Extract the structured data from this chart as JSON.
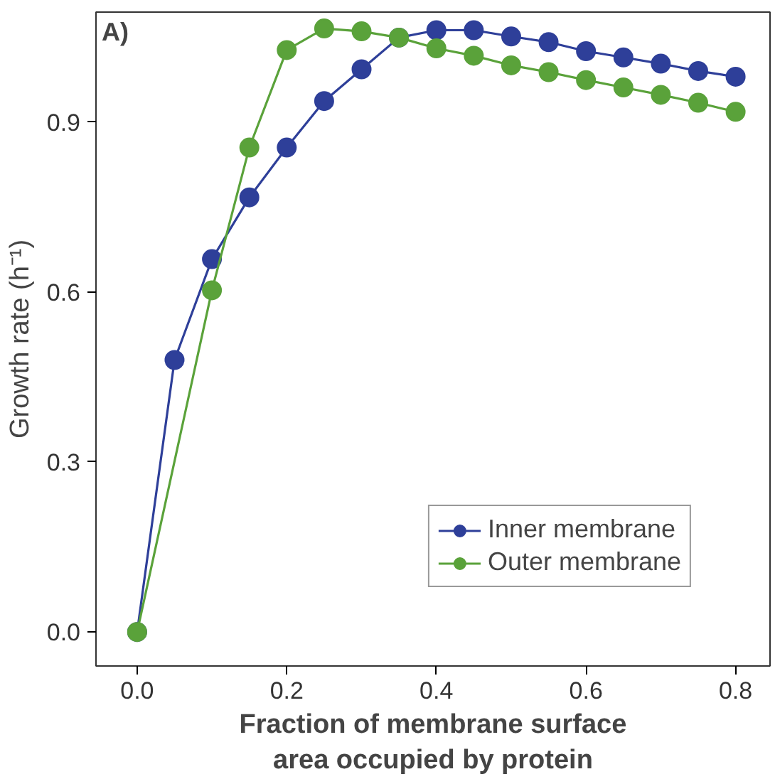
{
  "chart_data": {
    "type": "line",
    "xlabel": "Fraction of membrane surface\narea occupied by protein",
    "ylabel": "Growth rate (h⁻¹)",
    "annotations": [
      "A)"
    ],
    "xlim": [
      -0.055,
      0.846
    ],
    "ylim": [
      -0.06,
      1.094
    ],
    "xticks": [
      {
        "value": 0,
        "label": "0.0"
      },
      0.2,
      0.4,
      0.6,
      0.8
    ],
    "yticks": [
      {
        "value": 0,
        "label": "0.0"
      },
      0.3,
      0.6,
      0.9
    ],
    "grid": false,
    "legend": "bottom right",
    "marker": "circle",
    "line_style": "solid",
    "series": [
      {
        "name": "Inner membrane",
        "color": "#2e3f99",
        "x": [
          0,
          0.05,
          0.1,
          0.15,
          0.2,
          0.25,
          0.3,
          0.35,
          0.4,
          0.45,
          0.5,
          0.55,
          0.6,
          0.65,
          0.7,
          0.75,
          0.8
        ],
        "values": [
          0,
          0.48,
          0.658,
          0.767,
          0.855,
          0.937,
          0.993,
          1.049,
          1.062,
          1.062,
          1.051,
          1.041,
          1.025,
          1.014,
          1.003,
          0.99,
          0.98
        ]
      },
      {
        "name": "Outer membrane",
        "color": "#5aa23a",
        "x": [
          0,
          0.1,
          0.15,
          0.2,
          0.25,
          0.3,
          0.35,
          0.4,
          0.45,
          0.5,
          0.55,
          0.6,
          0.65,
          0.7,
          0.75,
          0.8
        ],
        "values": [
          0,
          0.603,
          0.855,
          1.027,
          1.065,
          1.06,
          1.049,
          1.03,
          1.017,
          1.0,
          0.988,
          0.974,
          0.961,
          0.948,
          0.934,
          0.918
        ]
      }
    ]
  }
}
